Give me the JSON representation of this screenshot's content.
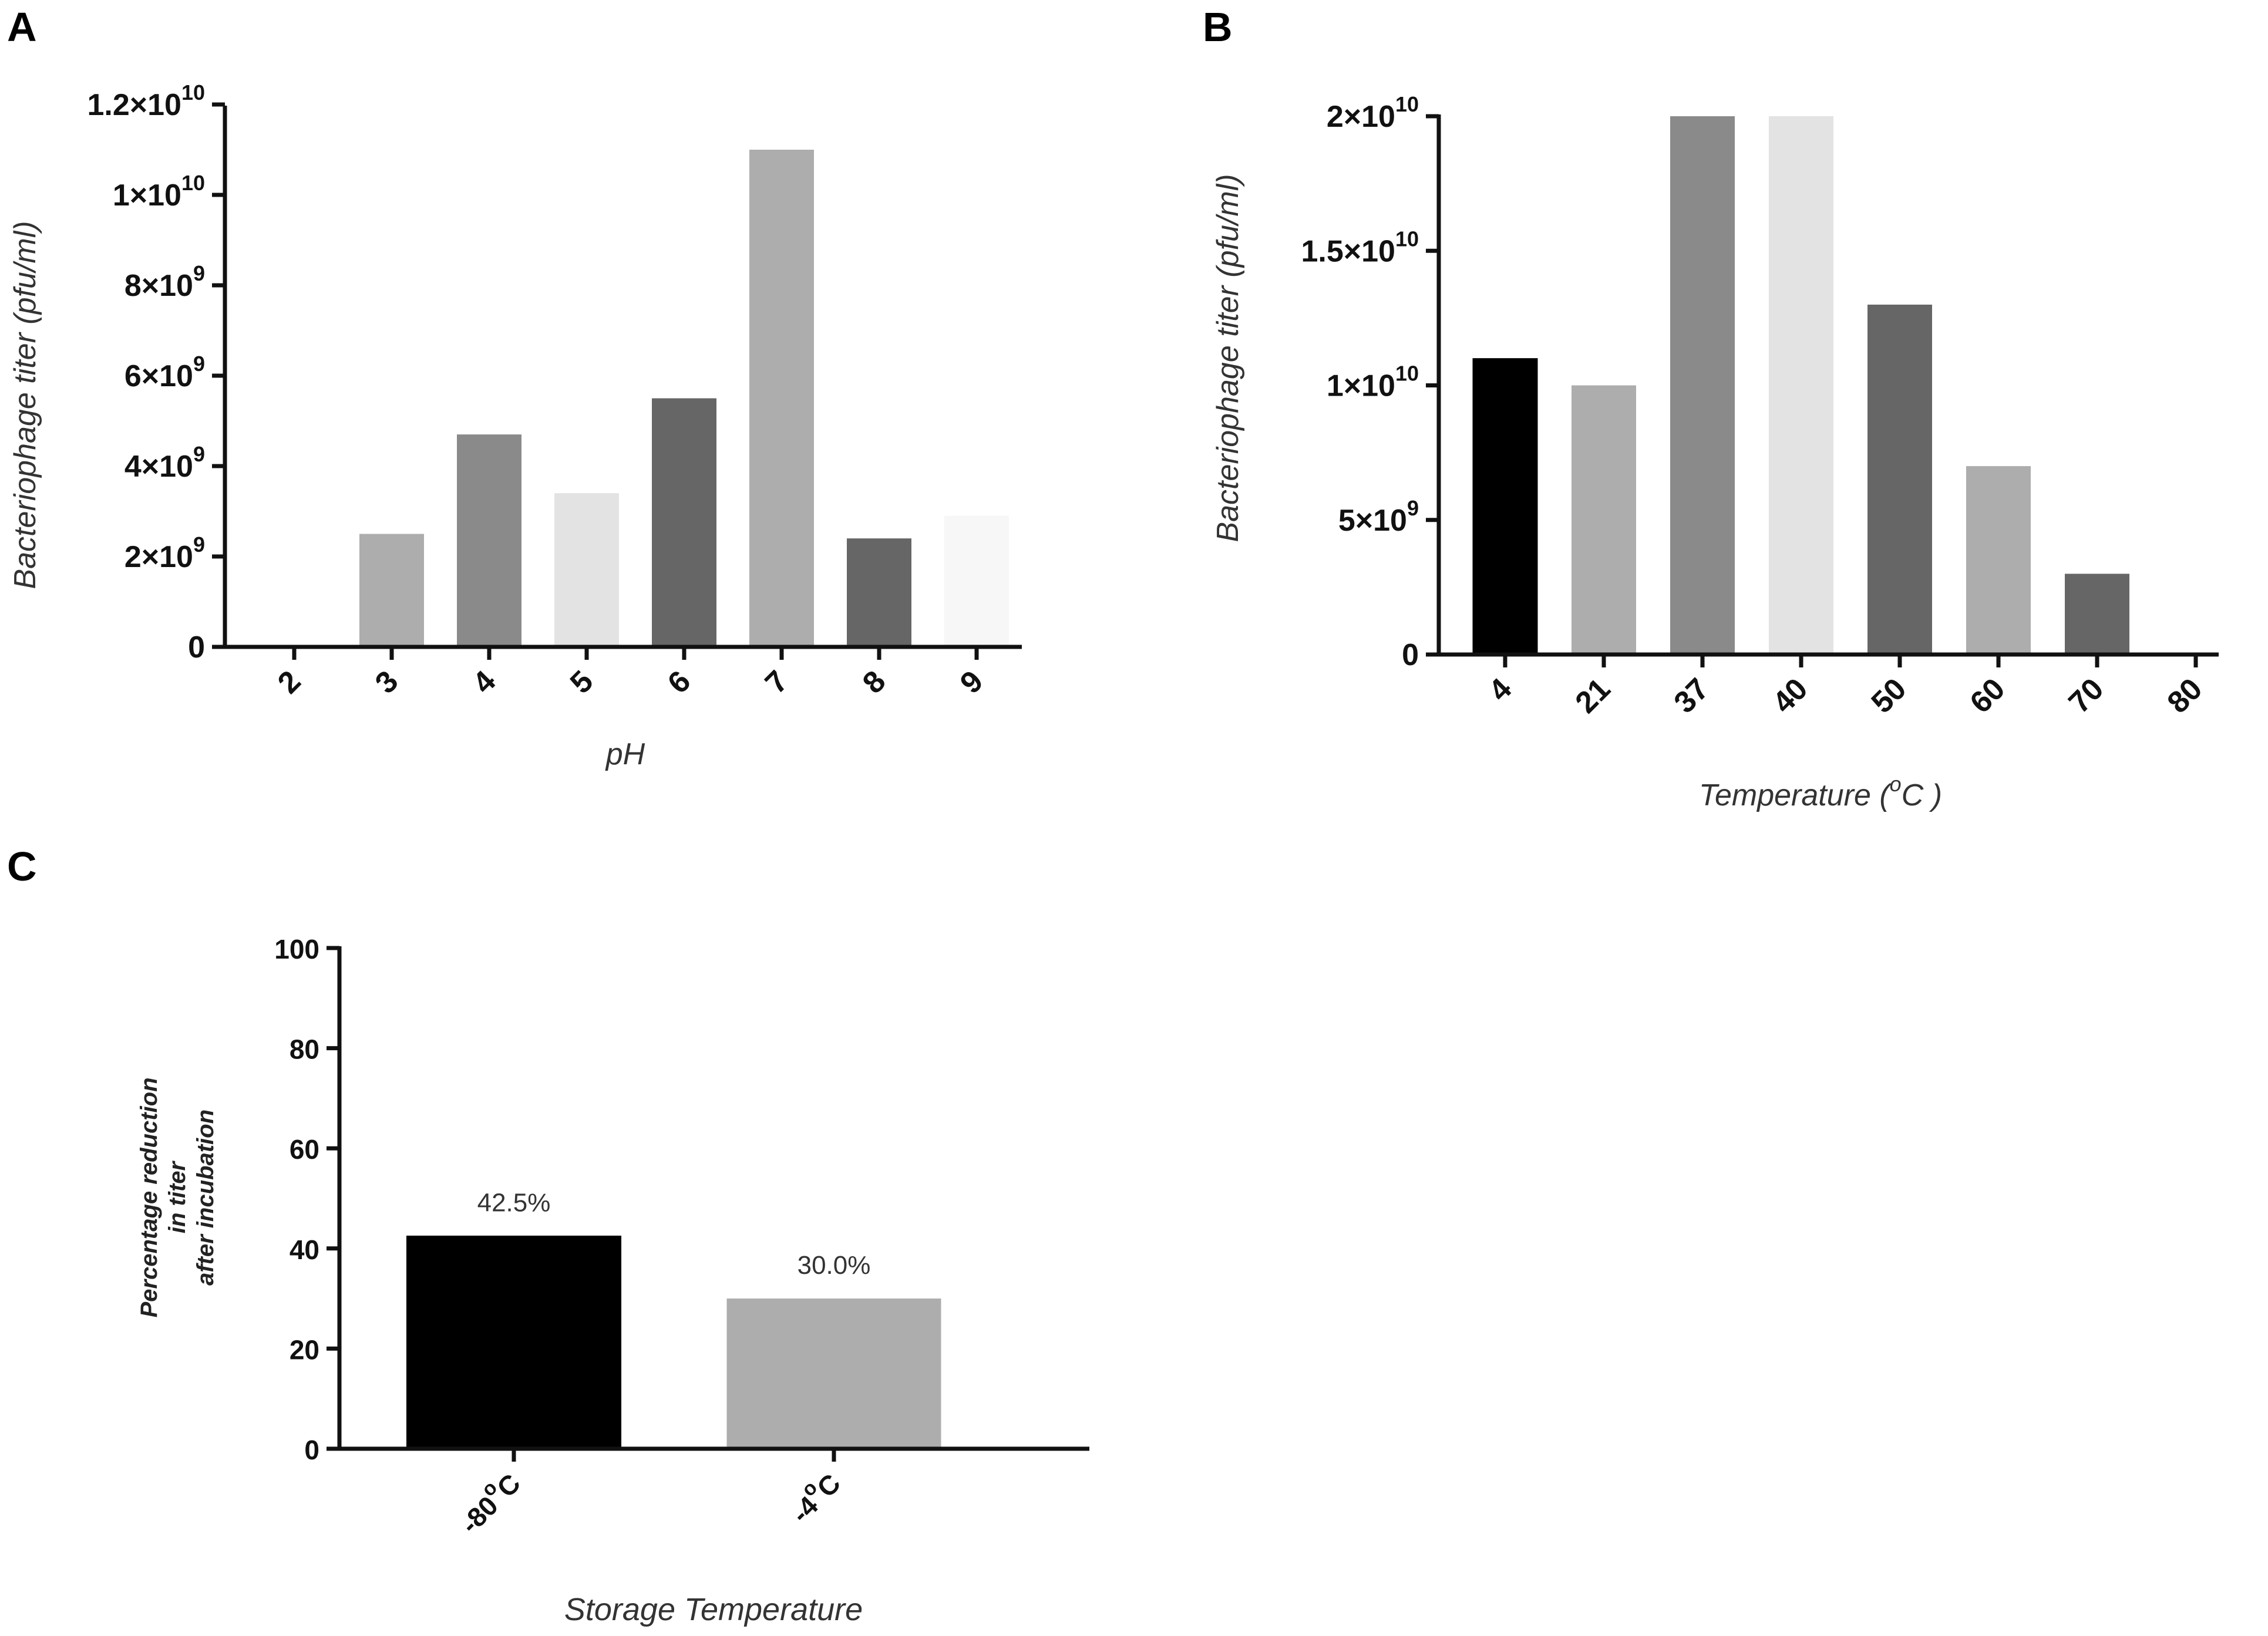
{
  "chart_data": [
    {
      "panel": "A",
      "type": "bar",
      "categories": [
        "2",
        "3",
        "4",
        "5",
        "6",
        "7",
        "8",
        "9"
      ],
      "values": [
        0,
        2500000000.0,
        4700000000.0,
        3400000000.0,
        5500000000.0,
        11000000000.0,
        2400000000.0,
        2900000000.0
      ],
      "colors": [
        "#ffffff",
        "#adadad",
        "#8a8a8a",
        "#e3e3e3",
        "#666666",
        "#adadad",
        "#666666",
        "#f7f7f7"
      ],
      "ylim": [
        0,
        12000000000.0
      ],
      "yticks": [
        {
          "value": 0,
          "mant": "0",
          "exp": ""
        },
        {
          "value": 2000000000.0,
          "mant": "2×10",
          "exp": "9"
        },
        {
          "value": 4000000000.0,
          "mant": "4×10",
          "exp": "9"
        },
        {
          "value": 6000000000.0,
          "mant": "6×10",
          "exp": "9"
        },
        {
          "value": 8000000000.0,
          "mant": "8×10",
          "exp": "9"
        },
        {
          "value": 10000000000.0,
          "mant": "1×10",
          "exp": "10"
        },
        {
          "value": 12000000000.0,
          "mant": "1.2×10",
          "exp": "10"
        }
      ],
      "xlabel": "pH",
      "ylabel": "Bacteriophage titer (pfu/ml)"
    },
    {
      "panel": "B",
      "type": "bar",
      "categories": [
        "4",
        "21",
        "37",
        "40",
        "50",
        "60",
        "70",
        "80"
      ],
      "values": [
        11000000000.0,
        10000000000.0,
        20000000000.0,
        20000000000.0,
        13000000000.0,
        7000000000.0,
        3000000000.0,
        0
      ],
      "colors": [
        "#000000",
        "#adadad",
        "#8a8a8a",
        "#e3e3e3",
        "#666666",
        "#adadad",
        "#666666",
        "#ffffff"
      ],
      "ylim": [
        0,
        20000000000.0
      ],
      "yticks": [
        {
          "value": 0,
          "mant": "0",
          "exp": ""
        },
        {
          "value": 5000000000.0,
          "mant": "5×10",
          "exp": "9"
        },
        {
          "value": 10000000000.0,
          "mant": "1×10",
          "exp": "10"
        },
        {
          "value": 15000000000.0,
          "mant": "1.5×10",
          "exp": "10"
        },
        {
          "value": 20000000000.0,
          "mant": "2×10",
          "exp": "10"
        }
      ],
      "xlabel_main": "Temperature (",
      "xlabel_sup": "o",
      "xlabel_end": "C )",
      "ylabel": "Bacteriophage titer (pfu/ml)"
    },
    {
      "panel": "C",
      "type": "bar",
      "categories_main": [
        "-80",
        "-4"
      ],
      "categories_sup": [
        "o",
        "o"
      ],
      "categories_end": [
        "C",
        "C"
      ],
      "values": [
        42.5,
        30.0
      ],
      "data_labels": [
        "42.5%",
        "30.0%"
      ],
      "colors": [
        "#000000",
        "#adadad"
      ],
      "ylim": [
        0,
        100
      ],
      "yticks": [
        {
          "value": 0,
          "label": "0"
        },
        {
          "value": 20,
          "label": "20"
        },
        {
          "value": 40,
          "label": "40"
        },
        {
          "value": 60,
          "label": "60"
        },
        {
          "value": 80,
          "label": "80"
        },
        {
          "value": 100,
          "label": "100"
        }
      ],
      "xlabel": "Storage Temperature",
      "ylabel_lines": [
        "Percentage reduction",
        "in titer",
        "after incubation"
      ]
    }
  ]
}
